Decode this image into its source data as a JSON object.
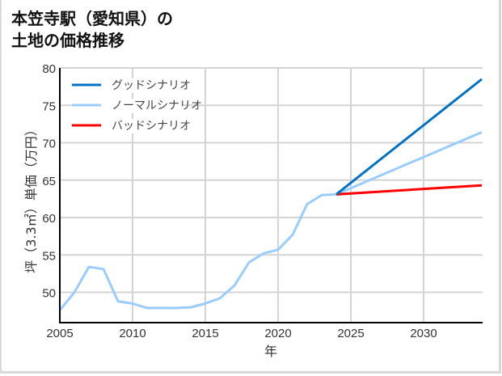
{
  "title_line1": "本笠寺駅（愛知県）の",
  "title_line2": "土地の価格推移",
  "chart_data": {
    "type": "line",
    "title": "本笠寺駅（愛知県）の土地の価格推移",
    "xlabel": "年",
    "ylabel": "坪（3.3㎡）単価（万円）",
    "xlim": [
      2005,
      2034
    ],
    "ylim": [
      46,
      80
    ],
    "xticks": [
      2005,
      2010,
      2015,
      2020,
      2025,
      2030
    ],
    "yticks": [
      50,
      55,
      60,
      65,
      70,
      75,
      80
    ],
    "grid": true,
    "legend_position": "upper left",
    "series": [
      {
        "name": "グッドシナリオ",
        "color": "#0072C6",
        "x": [
          2024,
          2034
        ],
        "values": [
          63.1,
          78.5
        ]
      },
      {
        "name": "ノーマルシナリオ",
        "color": "#99CCFF",
        "x": [
          2005,
          2006,
          2007,
          2008,
          2009,
          2010,
          2011,
          2012,
          2013,
          2014,
          2015,
          2016,
          2017,
          2018,
          2019,
          2020,
          2021,
          2022,
          2023,
          2024,
          2034
        ],
        "values": [
          47.6,
          50.0,
          53.4,
          53.1,
          48.8,
          48.5,
          47.9,
          47.9,
          47.9,
          48.0,
          48.5,
          49.2,
          50.9,
          54.0,
          55.2,
          55.7,
          57.7,
          61.8,
          63.0,
          63.1,
          71.4
        ]
      },
      {
        "name": "バッドシナリオ",
        "color": "#FF0000",
        "x": [
          2024,
          2034
        ],
        "values": [
          63.1,
          64.3
        ]
      }
    ]
  }
}
